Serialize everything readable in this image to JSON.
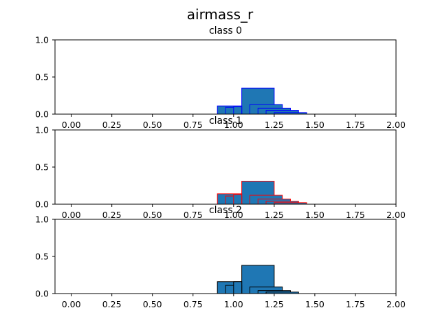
{
  "figure": {
    "title": "airmass_r"
  },
  "chart_data": [
    {
      "type": "bar",
      "title": "class 0",
      "xlim": [
        -0.1,
        2.0
      ],
      "ylim": [
        0,
        1.0
      ],
      "x_ticks": [
        "0.00",
        "0.25",
        "0.50",
        "0.75",
        "1.00",
        "1.25",
        "1.50",
        "1.75",
        "2.00"
      ],
      "y_ticks": [
        "0.0",
        "0.5",
        "1.0"
      ],
      "edge_color": "#0000ff",
      "fill_color": "#1f77b4",
      "bars": [
        {
          "x0": 1.05,
          "x1": 1.25,
          "value": 0.35
        },
        {
          "x0": 0.9,
          "x1": 1.05,
          "value": 0.11
        },
        {
          "x0": 0.95,
          "x1": 1.05,
          "value": 0.09
        },
        {
          "x0": 1.0,
          "x1": 1.05,
          "value": 0.1
        },
        {
          "x0": 1.1,
          "x1": 1.3,
          "value": 0.13
        },
        {
          "x0": 1.15,
          "x1": 1.35,
          "value": 0.08
        },
        {
          "x0": 1.2,
          "x1": 1.4,
          "value": 0.05
        },
        {
          "x0": 1.25,
          "x1": 1.45,
          "value": 0.02
        },
        {
          "x0": -0.05,
          "x1": 1.9,
          "value": 0.0
        }
      ]
    },
    {
      "type": "bar",
      "title": "class 1",
      "xlim": [
        -0.1,
        2.0
      ],
      "ylim": [
        0,
        1.0
      ],
      "x_ticks": [
        "0.00",
        "0.25",
        "0.50",
        "0.75",
        "1.00",
        "1.25",
        "1.50",
        "1.75",
        "2.00"
      ],
      "y_ticks": [
        "0.0",
        "0.5",
        "1.0"
      ],
      "edge_color": "#ff0000",
      "fill_color": "#1f77b4",
      "bars": [
        {
          "x0": 1.05,
          "x1": 1.25,
          "value": 0.31
        },
        {
          "x0": 0.9,
          "x1": 1.05,
          "value": 0.14
        },
        {
          "x0": 0.95,
          "x1": 1.05,
          "value": 0.11
        },
        {
          "x0": 1.0,
          "x1": 1.05,
          "value": 0.13
        },
        {
          "x0": 1.1,
          "x1": 1.3,
          "value": 0.12
        },
        {
          "x0": 1.15,
          "x1": 1.35,
          "value": 0.07
        },
        {
          "x0": 1.2,
          "x1": 1.4,
          "value": 0.04
        },
        {
          "x0": 1.25,
          "x1": 1.45,
          "value": 0.02
        },
        {
          "x0": -0.1,
          "x1": 1.95,
          "value": 0.0
        }
      ]
    },
    {
      "type": "bar",
      "title": "class 2",
      "xlim": [
        -0.1,
        2.0
      ],
      "ylim": [
        0,
        1.0
      ],
      "x_ticks": [
        "0.00",
        "0.25",
        "0.50",
        "0.75",
        "1.00",
        "1.25",
        "1.50",
        "1.75",
        "2.00"
      ],
      "y_ticks": [
        "0.0",
        "0.5",
        "1.0"
      ],
      "edge_color": "#000000",
      "fill_color": "#1f77b4",
      "bars": [
        {
          "x0": 1.05,
          "x1": 1.25,
          "value": 0.38
        },
        {
          "x0": 0.9,
          "x1": 1.05,
          "value": 0.16
        },
        {
          "x0": 0.95,
          "x1": 1.05,
          "value": 0.11
        },
        {
          "x0": 1.0,
          "x1": 1.05,
          "value": 0.16
        },
        {
          "x0": 1.1,
          "x1": 1.3,
          "value": 0.09
        },
        {
          "x0": 1.15,
          "x1": 1.35,
          "value": 0.04
        },
        {
          "x0": 1.2,
          "x1": 1.4,
          "value": 0.02
        },
        {
          "x0": -0.05,
          "x1": 1.9,
          "value": 0.0
        }
      ]
    }
  ]
}
